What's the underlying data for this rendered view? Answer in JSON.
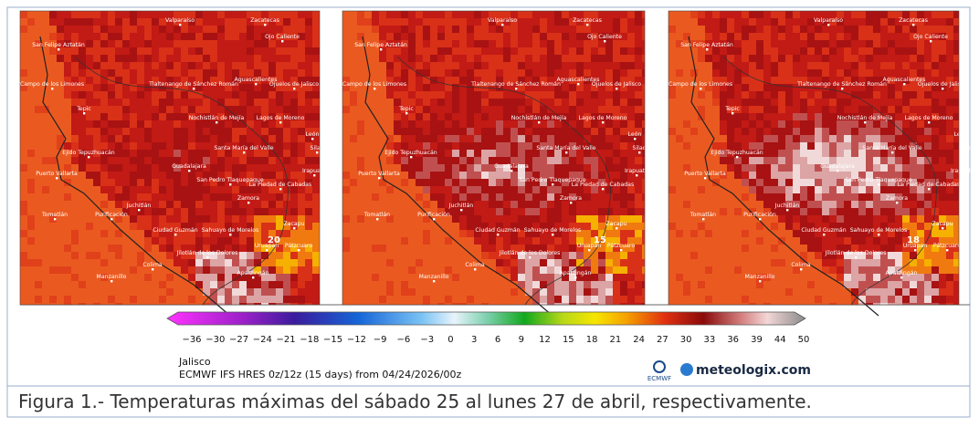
{
  "panels": [
    {
      "highlight": "20"
    },
    {
      "highlight": "15"
    },
    {
      "highlight": "18"
    }
  ],
  "places": [
    "Valparaíso",
    "Zacatecas",
    "Ojo Caliente",
    "San Felipe Aztatán",
    "Campo de los Limones",
    "Tlaltenango de Sánchez Román",
    "Aguascalientes",
    "Ojuelos de Jalisco",
    "Tepic",
    "Nochistlán de Mejía",
    "Lagos de Moreno",
    "León",
    "Silao",
    "Ejido Tepuzhuacán",
    "Santa María del Valle",
    "Irapuato",
    "Puerto Vallarta",
    "Guadalajara",
    "San Pedro Tlaquepaque",
    "La Piedad de Cabadas",
    "Tomatlán",
    "Juchitlán",
    "Zamora",
    "Zacapu",
    "Purificación",
    "Ciudad Guzmán",
    "Sahuayo de Morelos",
    "Uruapan",
    "Pátzcuaro",
    "Jilotlán de los Dolores",
    "Colima",
    "Manzanillo",
    "Apatzingán"
  ],
  "colorbar": {
    "ticks": [
      "−36",
      "−30",
      "−27",
      "−24",
      "−21",
      "−18",
      "−15",
      "−12",
      "−9",
      "−6",
      "−3",
      "0",
      "3",
      "6",
      "9",
      "12",
      "15",
      "18",
      "21",
      "24",
      "27",
      "30",
      "33",
      "36",
      "39",
      "44",
      "50"
    ]
  },
  "footer": {
    "region": "Jalisco",
    "model": "ECMWF IFS HRES 0z/12z (15 days) from 04/24/2026/00z",
    "logo": "ECMWF",
    "brand": "meteologix.com"
  },
  "caption": "Figura 1.- Temperaturas máximas del sábado 25 al lunes 27 de abril, respectivamente."
}
